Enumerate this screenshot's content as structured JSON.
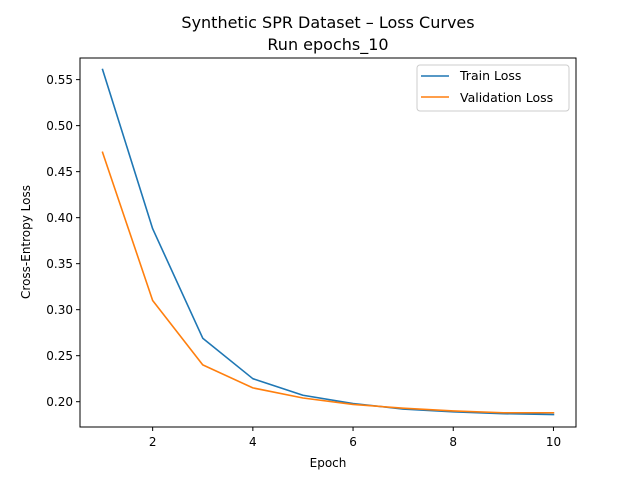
{
  "chart_data": {
    "type": "line",
    "title": "Synthetic SPR Dataset – Loss Curves",
    "subtitle": "Run epochs_10",
    "xlabel": "Epoch",
    "ylabel": "Cross-Entropy Loss",
    "x": [
      1,
      2,
      3,
      4,
      5,
      6,
      7,
      8,
      9,
      10
    ],
    "xlim": [
      0.55,
      10.45
    ],
    "ylim": [
      0.1725,
      0.5735
    ],
    "xticks": [
      2,
      4,
      6,
      8,
      10
    ],
    "xtick_labels": [
      "2",
      "4",
      "6",
      "8",
      "10"
    ],
    "yticks": [
      0.2,
      0.25,
      0.3,
      0.35,
      0.4,
      0.45,
      0.5,
      0.55
    ],
    "ytick_labels": [
      "0.20",
      "0.25",
      "0.30",
      "0.35",
      "0.40",
      "0.45",
      "0.50",
      "0.55"
    ],
    "grid": false,
    "legend_position": "top-right",
    "series": [
      {
        "name": "Train Loss",
        "color": "#1f77b4",
        "values": [
          0.561,
          0.388,
          0.269,
          0.225,
          0.207,
          0.198,
          0.192,
          0.189,
          0.187,
          0.186
        ]
      },
      {
        "name": "Validation Loss",
        "color": "#ff7f0e",
        "values": [
          0.471,
          0.31,
          0.24,
          0.215,
          0.204,
          0.197,
          0.193,
          0.19,
          0.188,
          0.188
        ]
      }
    ]
  }
}
